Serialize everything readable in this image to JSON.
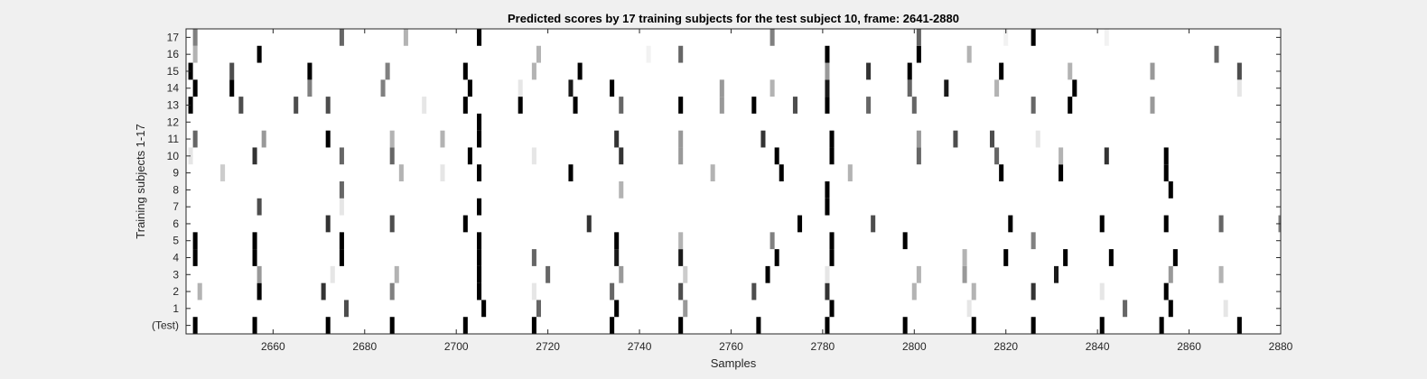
{
  "chart_data": {
    "type": "heatmap",
    "title": "Predicted scores by 17 training subjects for the test subject 10, frame: 2641-2880",
    "xlabel": "Samples",
    "ylabel": "Training subjects 1-17",
    "xlim": [
      2641,
      2880
    ],
    "xticks": [
      2660,
      2680,
      2700,
      2720,
      2740,
      2760,
      2780,
      2800,
      2820,
      2840,
      2860,
      2880
    ],
    "rows": [
      "(Test)",
      "1",
      "2",
      "3",
      "4",
      "5",
      "6",
      "7",
      "8",
      "9",
      "10",
      "11",
      "12",
      "13",
      "14",
      "15",
      "16",
      "17"
    ],
    "colormap": "gray (1 = black, 0 = white)",
    "background_color": "#ffffff",
    "grid": false,
    "legend": "none",
    "marks": [
      {
        "row": "(Test)",
        "events": [
          [
            2643,
            1
          ],
          [
            2656,
            1
          ],
          [
            2672,
            1
          ],
          [
            2686,
            1
          ],
          [
            2702,
            1
          ],
          [
            2717,
            1
          ],
          [
            2734,
            1
          ],
          [
            2749,
            1
          ],
          [
            2766,
            1
          ],
          [
            2781,
            1
          ],
          [
            2798,
            1
          ],
          [
            2813,
            1
          ],
          [
            2826,
            1
          ],
          [
            2841,
            1
          ],
          [
            2854,
            1
          ],
          [
            2871,
            1
          ]
        ]
      },
      {
        "row": "1",
        "events": [
          [
            2676,
            0.7
          ],
          [
            2706,
            1
          ],
          [
            2718,
            0.6
          ],
          [
            2735,
            1
          ],
          [
            2750,
            0.4
          ],
          [
            2782,
            1
          ],
          [
            2812,
            0.1
          ],
          [
            2846,
            0.6
          ],
          [
            2856,
            1
          ],
          [
            2868,
            0.1
          ]
        ]
      },
      {
        "row": "2",
        "events": [
          [
            2644,
            0.3
          ],
          [
            2657,
            1
          ],
          [
            2671,
            0.8
          ],
          [
            2686,
            0.5
          ],
          [
            2705,
            1
          ],
          [
            2717,
            0.1
          ],
          [
            2734,
            0.6
          ],
          [
            2749,
            0.7
          ],
          [
            2765,
            0.7
          ],
          [
            2781,
            0.8
          ],
          [
            2800,
            0.3
          ],
          [
            2813,
            0.3
          ],
          [
            2826,
            0.8
          ],
          [
            2841,
            0.1
          ],
          [
            2855,
            1
          ]
        ]
      },
      {
        "row": "3",
        "events": [
          [
            2657,
            0.4
          ],
          [
            2673,
            0.1
          ],
          [
            2687,
            0.3
          ],
          [
            2705,
            1
          ],
          [
            2720,
            0.6
          ],
          [
            2736,
            0.4
          ],
          [
            2750,
            0.2
          ],
          [
            2768,
            1
          ],
          [
            2781,
            0.1
          ],
          [
            2801,
            0.3
          ],
          [
            2811,
            0.4
          ],
          [
            2831,
            0.9
          ],
          [
            2856,
            0.4
          ],
          [
            2867,
            0.3
          ]
        ]
      },
      {
        "row": "4",
        "events": [
          [
            2643,
            1
          ],
          [
            2656,
            1
          ],
          [
            2675,
            1
          ],
          [
            2705,
            1
          ],
          [
            2717,
            0.6
          ],
          [
            2735,
            0.9
          ],
          [
            2749,
            0.9
          ],
          [
            2770,
            1
          ],
          [
            2782,
            1
          ],
          [
            2811,
            0.3
          ],
          [
            2820,
            1
          ],
          [
            2833,
            1
          ],
          [
            2843,
            1
          ],
          [
            2857,
            1
          ]
        ]
      },
      {
        "row": "5",
        "events": [
          [
            2643,
            1
          ],
          [
            2656,
            1
          ],
          [
            2675,
            1
          ],
          [
            2705,
            1
          ],
          [
            2735,
            1
          ],
          [
            2749,
            0.3
          ],
          [
            2769,
            0.5
          ],
          [
            2782,
            1
          ],
          [
            2798,
            1
          ],
          [
            2826,
            0.5
          ]
        ]
      },
      {
        "row": "6",
        "events": [
          [
            2672,
            0.8
          ],
          [
            2686,
            0.7
          ],
          [
            2702,
            1
          ],
          [
            2729,
            0.8
          ],
          [
            2775,
            1
          ],
          [
            2791,
            0.7
          ],
          [
            2821,
            1
          ],
          [
            2841,
            1
          ],
          [
            2855,
            1
          ],
          [
            2867,
            0.6
          ],
          [
            2880,
            0.5
          ]
        ]
      },
      {
        "row": "7",
        "events": [
          [
            2657,
            0.7
          ],
          [
            2675,
            0.1
          ],
          [
            2705,
            1
          ],
          [
            2781,
            1
          ]
        ]
      },
      {
        "row": "8",
        "events": [
          [
            2675,
            0.6
          ],
          [
            2736,
            0.3
          ],
          [
            2781,
            1
          ],
          [
            2856,
            1
          ]
        ]
      },
      {
        "row": "9",
        "events": [
          [
            2649,
            0.2
          ],
          [
            2688,
            0.3
          ],
          [
            2697,
            0.1
          ],
          [
            2705,
            1
          ],
          [
            2725,
            1
          ],
          [
            2756,
            0.3
          ],
          [
            2771,
            1
          ],
          [
            2786,
            0.3
          ],
          [
            2819,
            1
          ],
          [
            2832,
            1
          ],
          [
            2855,
            1
          ]
        ]
      },
      {
        "row": "10",
        "events": [
          [
            2642,
            0.1
          ],
          [
            2656,
            0.8
          ],
          [
            2675,
            0.6
          ],
          [
            2686,
            0.6
          ],
          [
            2703,
            1
          ],
          [
            2717,
            0.1
          ],
          [
            2736,
            0.8
          ],
          [
            2749,
            0.4
          ],
          [
            2770,
            1
          ],
          [
            2782,
            1
          ],
          [
            2801,
            0.6
          ],
          [
            2818,
            0.6
          ],
          [
            2832,
            0.3
          ],
          [
            2842,
            0.8
          ],
          [
            2855,
            1
          ]
        ]
      },
      {
        "row": "11",
        "events": [
          [
            2643,
            0.6
          ],
          [
            2658,
            0.4
          ],
          [
            2672,
            1
          ],
          [
            2686,
            0.3
          ],
          [
            2697,
            0.3
          ],
          [
            2705,
            1
          ],
          [
            2735,
            0.8
          ],
          [
            2749,
            0.4
          ],
          [
            2767,
            0.8
          ],
          [
            2782,
            1
          ],
          [
            2801,
            0.4
          ],
          [
            2809,
            0.7
          ],
          [
            2817,
            0.7
          ],
          [
            2827,
            0.1
          ]
        ]
      },
      {
        "row": "12",
        "events": [
          [
            2705,
            1
          ]
        ]
      },
      {
        "row": "13",
        "events": [
          [
            2642,
            1
          ],
          [
            2653,
            0.7
          ],
          [
            2665,
            0.7
          ],
          [
            2672,
            0.7
          ],
          [
            2693,
            0.1
          ],
          [
            2702,
            1
          ],
          [
            2714,
            1
          ],
          [
            2726,
            1
          ],
          [
            2736,
            0.6
          ],
          [
            2749,
            1
          ],
          [
            2758,
            0.4
          ],
          [
            2765,
            1
          ],
          [
            2774,
            0.7
          ],
          [
            2781,
            1
          ],
          [
            2790,
            0.6
          ],
          [
            2800,
            0.6
          ],
          [
            2826,
            0.6
          ],
          [
            2834,
            1
          ],
          [
            2852,
            0.4
          ]
        ]
      },
      {
        "row": "14",
        "events": [
          [
            2643,
            1
          ],
          [
            2651,
            1
          ],
          [
            2668,
            0.5
          ],
          [
            2684,
            0.5
          ],
          [
            2703,
            1
          ],
          [
            2714,
            0.1
          ],
          [
            2725,
            0.9
          ],
          [
            2734,
            1
          ],
          [
            2758,
            0.4
          ],
          [
            2769,
            0.3
          ],
          [
            2781,
            0.9
          ],
          [
            2799,
            0.6
          ],
          [
            2807,
            0.9
          ],
          [
            2818,
            0.3
          ],
          [
            2835,
            1
          ],
          [
            2871,
            0.1
          ]
        ]
      },
      {
        "row": "15",
        "events": [
          [
            2642,
            1
          ],
          [
            2651,
            0.7
          ],
          [
            2668,
            1
          ],
          [
            2685,
            0.5
          ],
          [
            2702,
            1
          ],
          [
            2717,
            0.3
          ],
          [
            2727,
            1
          ],
          [
            2781,
            0.4
          ],
          [
            2790,
            0.8
          ],
          [
            2799,
            1
          ],
          [
            2819,
            1
          ],
          [
            2834,
            0.3
          ],
          [
            2852,
            0.4
          ],
          [
            2871,
            0.7
          ]
        ]
      },
      {
        "row": "16",
        "events": [
          [
            2643,
            0.3
          ],
          [
            2657,
            1
          ],
          [
            2718,
            0.3
          ],
          [
            2742,
            0.05
          ],
          [
            2749,
            0.6
          ],
          [
            2781,
            1
          ],
          [
            2801,
            1
          ],
          [
            2812,
            0.3
          ],
          [
            2866,
            0.6
          ]
        ]
      },
      {
        "row": "17",
        "events": [
          [
            2643,
            0.5
          ],
          [
            2675,
            0.6
          ],
          [
            2689,
            0.3
          ],
          [
            2705,
            1
          ],
          [
            2769,
            0.5
          ],
          [
            2801,
            0.6
          ],
          [
            2820,
            0.05
          ],
          [
            2826,
            1
          ],
          [
            2842,
            0.05
          ]
        ]
      }
    ]
  }
}
